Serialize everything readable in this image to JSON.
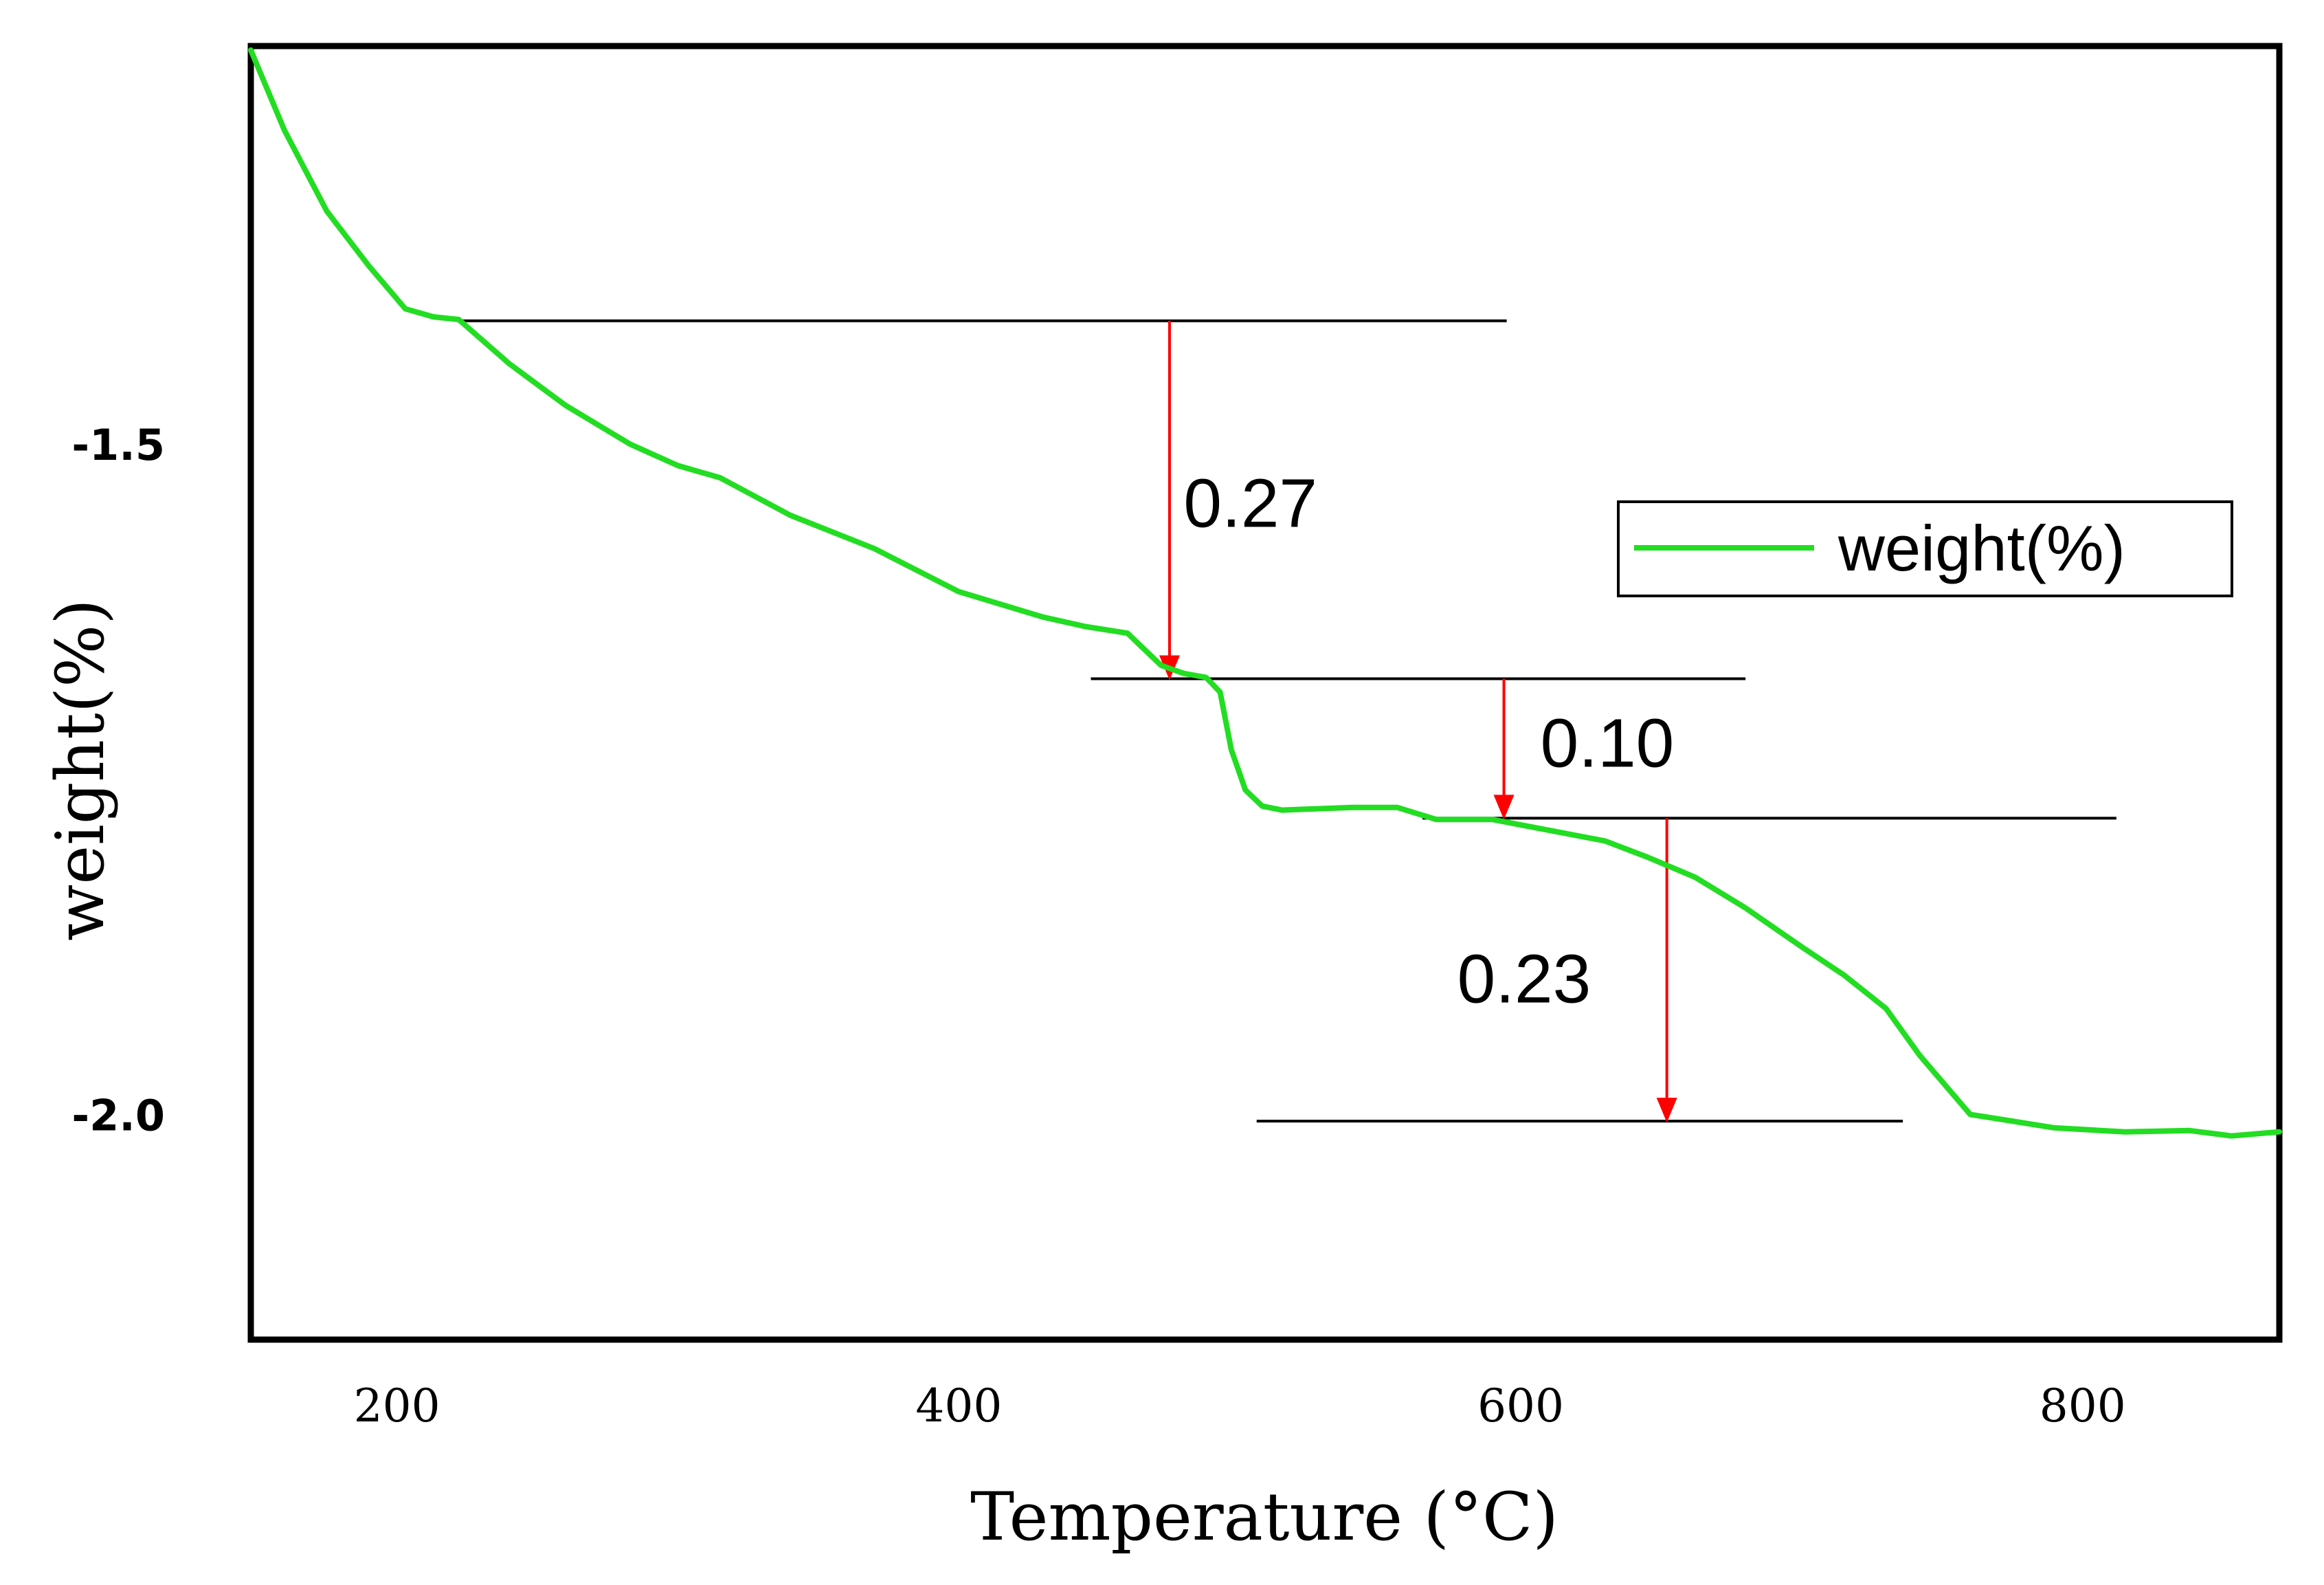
{
  "chart_data": {
    "type": "line",
    "title": "",
    "xlabel": "Temperature (°C)",
    "ylabel": "weight(%)",
    "xlim": [
      148,
      870
    ],
    "ylim": [
      -2.165,
      -1.2
    ],
    "x_ticks": [
      200,
      400,
      600,
      800
    ],
    "y_ticks": [
      -1.5,
      -2.0
    ],
    "x_tick_labels": [
      "200",
      "400",
      "600",
      "800"
    ],
    "y_tick_labels": [
      "-1.5",
      "-2.0"
    ],
    "grid": false,
    "legend": {
      "position": "right-middle",
      "entries": [
        "weight(%)"
      ]
    },
    "series": [
      {
        "name": "weight(%)",
        "color": "#22dd22",
        "x": [
          148,
          160,
          175,
          190,
          203,
          213,
          222,
          240,
          260,
          283,
          300,
          315,
          340,
          370,
          400,
          430,
          445,
          460,
          472,
          480,
          488,
          493,
          497,
          502,
          508,
          515,
          540,
          556,
          570,
          590,
          610,
          630,
          645,
          662,
          680,
          700,
          715,
          730,
          742,
          760,
          790,
          815,
          838,
          853,
          870
        ],
        "y": [
          -1.203,
          -1.263,
          -1.323,
          -1.364,
          -1.396,
          -1.402,
          -1.404,
          -1.437,
          -1.468,
          -1.497,
          -1.513,
          -1.522,
          -1.55,
          -1.575,
          -1.607,
          -1.626,
          -1.633,
          -1.638,
          -1.662,
          -1.668,
          -1.671,
          -1.682,
          -1.725,
          -1.755,
          -1.767,
          -1.77,
          -1.768,
          -1.768,
          -1.777,
          -1.777,
          -1.785,
          -1.793,
          -1.805,
          -1.82,
          -1.843,
          -1.872,
          -1.893,
          -1.918,
          -1.953,
          -1.997,
          -2.007,
          -2.01,
          -2.009,
          -2.013,
          -2.01
        ]
      }
    ],
    "reference_lines": [
      {
        "y": -1.405,
        "x_from": 222,
        "x_to": 595
      },
      {
        "y": -1.672,
        "x_from": 447,
        "x_to": 680
      },
      {
        "y": -1.776,
        "x_from": 565,
        "x_to": 812
      },
      {
        "y": -2.002,
        "x_from": 506,
        "x_to": 736
      }
    ],
    "annotations": [
      {
        "text": "0.27",
        "x": 475,
        "y_from": -1.405,
        "y_to": -1.672,
        "label_x": 480,
        "label_y": -1.545,
        "anchor": "start"
      },
      {
        "text": "0.10",
        "x": 594,
        "y_from": -1.672,
        "y_to": -1.776,
        "label_x": 607,
        "label_y": -1.724,
        "anchor": "start"
      },
      {
        "text": "0.23",
        "x": 652,
        "y_from": -1.776,
        "y_to": -2.002,
        "label_x": 625,
        "label_y": -1.9,
        "anchor": "end"
      }
    ],
    "arrow_color": "#ff0000",
    "line_color": "#000000"
  }
}
